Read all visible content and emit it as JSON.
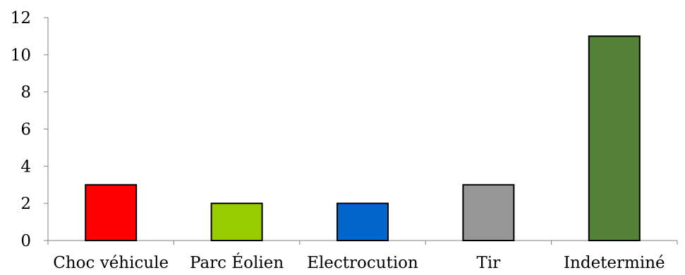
{
  "chart_data": {
    "type": "bar",
    "categories": [
      "Choc véhicule",
      "Parc Éolien",
      "Electrocution",
      "Tir",
      "Indeterminé"
    ],
    "values": [
      3,
      2,
      2,
      3,
      11
    ],
    "colors": [
      "#ff0000",
      "#99cc00",
      "#0066cc",
      "#969696",
      "#538135"
    ],
    "title": "",
    "xlabel": "",
    "ylabel": "",
    "ylim": [
      0,
      12
    ],
    "yticks": [
      0,
      2,
      4,
      6,
      8,
      10,
      12
    ],
    "grid": false,
    "legend": "none"
  }
}
